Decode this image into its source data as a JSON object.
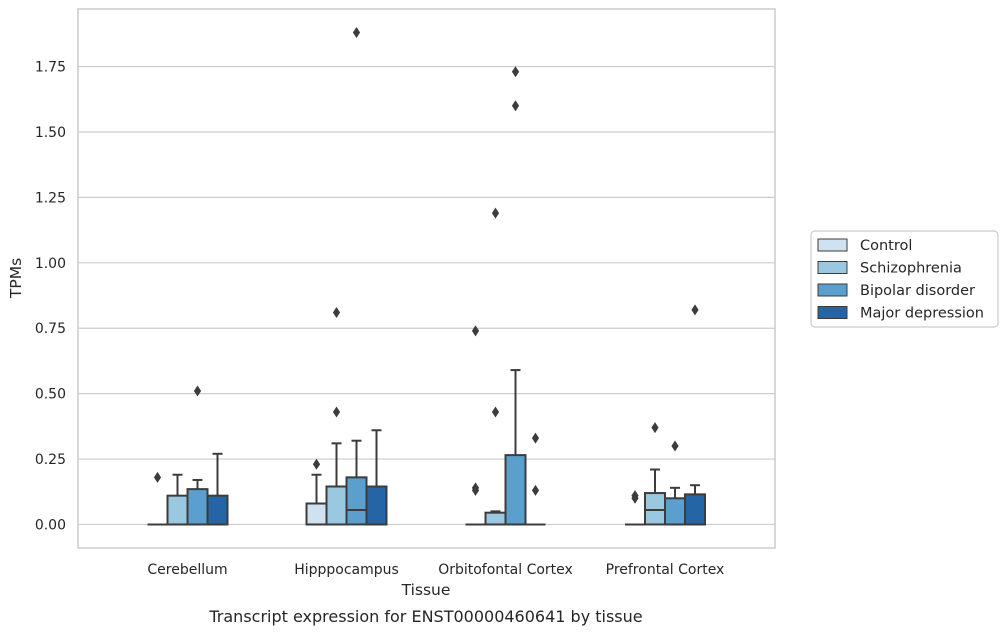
{
  "chart_data": {
    "type": "box",
    "xlabel": "Tissue",
    "ylabel": "TPMs",
    "caption": "Transcript expression for ENST00000460641 by tissue",
    "categories": [
      "Cerebellum",
      "Hipppocampus",
      "Orbitofontal Cortex",
      "Prefrontal Cortex"
    ],
    "ylim": [
      -0.09,
      1.97
    ],
    "yticks": [
      0.0,
      0.25,
      0.5,
      0.75,
      1.0,
      1.25,
      1.5,
      1.75
    ],
    "ytick_labels": [
      "0.00",
      "0.25",
      "0.50",
      "0.75",
      "1.00",
      "1.25",
      "1.50",
      "1.75"
    ],
    "grid": true,
    "legend_position": "center-right",
    "series": [
      {
        "name": "Control",
        "color": "#d0e2f2",
        "boxes": [
          {
            "q1": 0.0,
            "median": 0.0,
            "q3": 0.0,
            "whisker_low": 0.0,
            "whisker_high": 0.0,
            "outliers": [
              0.18
            ]
          },
          {
            "q1": 0.0,
            "median": 0.0,
            "q3": 0.08,
            "whisker_low": 0.0,
            "whisker_high": 0.19,
            "outliers": [
              0.23
            ]
          },
          {
            "q1": 0.0,
            "median": 0.0,
            "q3": 0.0,
            "whisker_low": 0.0,
            "whisker_high": 0.0,
            "outliers": [
              0.74,
              0.14,
              0.13
            ]
          },
          {
            "q1": 0.0,
            "median": 0.0,
            "q3": 0.0,
            "whisker_low": 0.0,
            "whisker_high": 0.0,
            "outliers": [
              0.11,
              0.1
            ]
          }
        ]
      },
      {
        "name": "Schizophrenia",
        "color": "#9ac8e0",
        "boxes": [
          {
            "q1": 0.0,
            "median": 0.0,
            "q3": 0.11,
            "whisker_low": 0.0,
            "whisker_high": 0.19,
            "outliers": []
          },
          {
            "q1": 0.0,
            "median": 0.0,
            "q3": 0.145,
            "whisker_low": 0.0,
            "whisker_high": 0.31,
            "outliers": [
              0.81,
              0.43
            ]
          },
          {
            "q1": 0.0,
            "median": 0.0,
            "q3": 0.045,
            "whisker_low": 0.0,
            "whisker_high": 0.05,
            "outliers": [
              1.19,
              0.43
            ]
          },
          {
            "q1": 0.0,
            "median": 0.055,
            "q3": 0.12,
            "whisker_low": 0.0,
            "whisker_high": 0.21,
            "outliers": [
              0.37
            ]
          }
        ]
      },
      {
        "name": "Bipolar disorder",
        "color": "#5a9fcd",
        "boxes": [
          {
            "q1": 0.0,
            "median": 0.0,
            "q3": 0.135,
            "whisker_low": 0.0,
            "whisker_high": 0.17,
            "outliers": [
              0.51
            ]
          },
          {
            "q1": 0.0,
            "median": 0.055,
            "q3": 0.18,
            "whisker_low": 0.0,
            "whisker_high": 0.32,
            "outliers": [
              1.88
            ]
          },
          {
            "q1": 0.0,
            "median": 0.0,
            "q3": 0.265,
            "whisker_low": 0.0,
            "whisker_high": 0.59,
            "outliers": [
              1.73,
              1.6
            ]
          },
          {
            "q1": 0.0,
            "median": 0.0,
            "q3": 0.1,
            "whisker_low": 0.0,
            "whisker_high": 0.14,
            "outliers": [
              0.3
            ]
          }
        ]
      },
      {
        "name": "Major depression",
        "color": "#2565a6",
        "boxes": [
          {
            "q1": 0.0,
            "median": 0.0,
            "q3": 0.11,
            "whisker_low": 0.0,
            "whisker_high": 0.27,
            "outliers": []
          },
          {
            "q1": 0.0,
            "median": 0.0,
            "q3": 0.145,
            "whisker_low": 0.0,
            "whisker_high": 0.36,
            "outliers": []
          },
          {
            "q1": 0.0,
            "median": 0.0,
            "q3": 0.0,
            "whisker_low": 0.0,
            "whisker_high": 0.0,
            "outliers": [
              0.33,
              0.13
            ]
          },
          {
            "q1": 0.0,
            "median": 0.0,
            "q3": 0.115,
            "whisker_low": 0.0,
            "whisker_high": 0.15,
            "outliers": [
              0.82
            ]
          }
        ]
      }
    ]
  },
  "style": {
    "grid_color": "#cccccc",
    "frame_color": "#cccccc",
    "line_color": "#3c3c3c",
    "outlier_color": "#3c3c3c"
  }
}
